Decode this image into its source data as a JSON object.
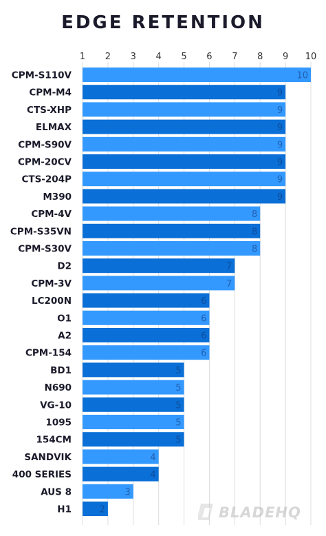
{
  "title": "EDGE RETENTION",
  "watermark": "BLADEHQ",
  "chart_data": {
    "type": "bar",
    "orientation": "horizontal",
    "title": "EDGE RETENTION",
    "xlim": [
      1,
      10
    ],
    "xticks": [
      1,
      2,
      3,
      4,
      5,
      6,
      7,
      8,
      9,
      10
    ],
    "grid": true,
    "colors": {
      "light": "#3399ff",
      "dark": "#0a6fd6",
      "grid": "#dcdcdc"
    },
    "categories": [
      "CPM-S110V",
      "CPM-M4",
      "CTS-XHP",
      "ELMAX",
      "CPM-S90V",
      "CPM-20CV",
      "CTS-204P",
      "M390",
      "CPM-4V",
      "CPM-S35VN",
      "CPM-S30V",
      "D2",
      "CPM-3V",
      "LC200N",
      "O1",
      "A2",
      "CPM-154",
      "BD1",
      "N690",
      "VG-10",
      "1095",
      "154CM",
      "SANDVIK",
      "400 SERIES",
      "AUS 8",
      "H1"
    ],
    "values": [
      10,
      9,
      9,
      9,
      9,
      9,
      9,
      9,
      8,
      8,
      8,
      7,
      7,
      6,
      6,
      6,
      6,
      5,
      5,
      5,
      5,
      5,
      4,
      4,
      3,
      2
    ]
  }
}
